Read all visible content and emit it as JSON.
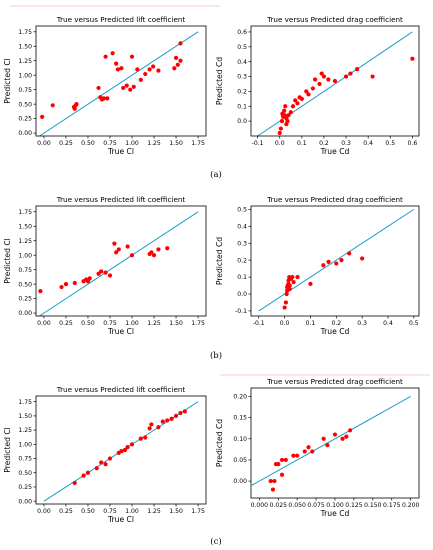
{
  "panel_labels": [
    "(a)",
    "(b)",
    "(c)"
  ],
  "colors": {
    "points": "#ff0000",
    "line": "#1f9ec9",
    "frame": "#000000",
    "divider": "#f2cfd6"
  },
  "chart_data": [
    {
      "type": "scatter",
      "title": "True versus Predicted lift coefficient",
      "xlabel": "True Cl",
      "ylabel": "Predicted Cl",
      "xlim": [
        -0.09,
        1.84
      ],
      "ylim": [
        -0.05,
        1.85
      ],
      "xticks": [
        "0.00",
        "0.25",
        "0.50",
        "0.75",
        "1.00",
        "1.25",
        "1.50",
        "1.75"
      ],
      "yticks": [
        "0.00",
        "0.25",
        "0.50",
        "0.75",
        "1.00",
        "1.25",
        "1.50",
        "1.75"
      ],
      "xtick_values": [
        0,
        0.25,
        0.5,
        0.75,
        1,
        1.25,
        1.5,
        1.75
      ],
      "ytick_values": [
        0,
        0.25,
        0.5,
        0.75,
        1,
        1.25,
        1.5,
        1.75
      ],
      "reference_line": [
        -0.05,
        1.75
      ],
      "x": [
        -0.02,
        0.1,
        0.35,
        0.37,
        0.34,
        0.36,
        0.62,
        0.64,
        0.66,
        0.7,
        0.72,
        0.68,
        0.78,
        0.82,
        0.84,
        0.88,
        0.9,
        0.94,
        0.98,
        1.0,
        1.02,
        1.06,
        1.1,
        1.15,
        1.2,
        1.24,
        1.3,
        1.48,
        1.5,
        1.52,
        1.55,
        1.55
      ],
      "y": [
        0.28,
        0.48,
        0.42,
        0.5,
        0.45,
        0.48,
        0.78,
        0.62,
        0.58,
        1.32,
        0.6,
        0.6,
        1.38,
        1.2,
        1.1,
        1.12,
        0.78,
        0.82,
        0.75,
        1.32,
        0.8,
        1.1,
        0.92,
        1.02,
        1.1,
        1.15,
        1.08,
        1.12,
        1.3,
        1.18,
        1.55,
        1.25
      ]
    },
    {
      "type": "scatter",
      "title": "True versus Predicted drag coefficient",
      "xlabel": "True Cd",
      "ylabel": "Predicted Cd",
      "xlim": [
        -0.13,
        0.63
      ],
      "ylim": [
        -0.1,
        0.64
      ],
      "xticks": [
        "-0.1",
        "0.0",
        "0.1",
        "0.2",
        "0.3",
        "0.4",
        "0.5",
        "0.6"
      ],
      "yticks": [
        "0.0",
        "0.1",
        "0.2",
        "0.3",
        "0.4",
        "0.5",
        "0.6"
      ],
      "xtick_values": [
        -0.1,
        0,
        0.1,
        0.2,
        0.3,
        0.4,
        0.5,
        0.6
      ],
      "ytick_values": [
        0,
        0.1,
        0.2,
        0.3,
        0.4,
        0.5,
        0.6
      ],
      "reference_line": [
        -0.1,
        0.6
      ],
      "x": [
        0.0,
        0.005,
        0.01,
        0.012,
        0.015,
        0.02,
        0.022,
        0.025,
        0.03,
        0.03,
        0.035,
        0.04,
        0.05,
        0.06,
        0.07,
        0.08,
        0.09,
        0.1,
        0.12,
        0.13,
        0.15,
        0.16,
        0.18,
        0.19,
        0.2,
        0.22,
        0.25,
        0.3,
        0.32,
        0.35,
        0.42,
        0.6
      ],
      "y": [
        -0.08,
        -0.05,
        0.0,
        0.05,
        0.03,
        0.07,
        0.04,
        0.1,
        0.02,
        -0.02,
        0.0,
        0.04,
        0.06,
        0.1,
        0.14,
        0.12,
        0.16,
        0.15,
        0.2,
        0.18,
        0.22,
        0.28,
        0.25,
        0.32,
        0.3,
        0.28,
        0.27,
        0.3,
        0.32,
        0.35,
        0.3,
        0.42
      ]
    },
    {
      "type": "scatter",
      "title": "True versus Predicted lift coefficient",
      "xlabel": "True Cl",
      "ylabel": "Predicted Cl",
      "xlim": [
        -0.09,
        1.84
      ],
      "ylim": [
        -0.05,
        1.85
      ],
      "xticks": [
        "0.00",
        "0.25",
        "0.50",
        "0.75",
        "1.00",
        "1.25",
        "1.50",
        "1.75"
      ],
      "yticks": [
        "0.00",
        "0.25",
        "0.50",
        "0.75",
        "1.00",
        "1.25",
        "1.50",
        "1.75"
      ],
      "xtick_values": [
        0,
        0.25,
        0.5,
        0.75,
        1,
        1.25,
        1.5,
        1.75
      ],
      "ytick_values": [
        0,
        0.25,
        0.5,
        0.75,
        1,
        1.25,
        1.5,
        1.75
      ],
      "reference_line": [
        -0.05,
        1.75
      ],
      "x": [
        -0.04,
        0.2,
        0.25,
        0.35,
        0.45,
        0.48,
        0.5,
        0.52,
        0.62,
        0.65,
        0.7,
        0.75,
        0.8,
        0.82,
        0.85,
        0.95,
        1.0,
        1.2,
        1.22,
        1.25,
        1.3,
        1.4
      ],
      "y": [
        0.38,
        0.45,
        0.5,
        0.52,
        0.55,
        0.58,
        0.55,
        0.6,
        0.68,
        0.72,
        0.7,
        0.65,
        1.2,
        1.05,
        1.1,
        1.15,
        1.0,
        1.02,
        1.05,
        1.0,
        1.1,
        1.12
      ]
    },
    {
      "type": "scatter",
      "title": "True versus Predicted drag coefficient",
      "xlabel": "True Cd",
      "ylabel": "Predicted Cd",
      "xlim": [
        -0.13,
        0.52
      ],
      "ylim": [
        -0.13,
        0.52
      ],
      "xticks": [
        "-0.1",
        "0.0",
        "0.1",
        "0.2",
        "0.3",
        "0.4",
        "0.5"
      ],
      "yticks": [
        "-0.1",
        "0.0",
        "0.1",
        "0.2",
        "0.3",
        "0.4",
        "0.5"
      ],
      "xtick_values": [
        -0.1,
        0,
        0.1,
        0.2,
        0.3,
        0.4,
        0.5
      ],
      "ytick_values": [
        -0.1,
        0,
        0.1,
        0.2,
        0.3,
        0.4,
        0.5
      ],
      "reference_line": [
        -0.1,
        0.5
      ],
      "x": [
        0.0,
        0.005,
        0.008,
        0.01,
        0.01,
        0.012,
        0.015,
        0.015,
        0.018,
        0.02,
        0.02,
        0.025,
        0.03,
        0.035,
        0.05,
        0.1,
        0.15,
        0.17,
        0.2,
        0.22,
        0.25,
        0.3
      ],
      "y": [
        -0.08,
        -0.05,
        0.0,
        0.02,
        0.04,
        0.05,
        0.06,
        0.08,
        0.1,
        0.05,
        0.03,
        0.09,
        0.1,
        0.07,
        0.1,
        0.06,
        0.17,
        0.19,
        0.18,
        0.2,
        0.24,
        0.21
      ]
    },
    {
      "type": "scatter",
      "title": "True versus Predicted lift coefficient",
      "xlabel": "True Cl",
      "ylabel": "Predicted Cl",
      "xlim": [
        -0.09,
        1.84
      ],
      "ylim": [
        -0.05,
        1.85
      ],
      "xticks": [
        "0.00",
        "0.25",
        "0.50",
        "0.75",
        "1.00",
        "1.25",
        "1.50",
        "1.75"
      ],
      "yticks": [
        "0.00",
        "0.25",
        "0.50",
        "0.75",
        "1.00",
        "1.25",
        "1.50",
        "1.75"
      ],
      "xtick_values": [
        0,
        0.25,
        0.5,
        0.75,
        1,
        1.25,
        1.5,
        1.75
      ],
      "ytick_values": [
        0,
        0.25,
        0.5,
        0.75,
        1,
        1.25,
        1.5,
        1.75
      ],
      "reference_line": [
        0.0,
        1.75
      ],
      "x": [
        0.35,
        0.45,
        0.5,
        0.6,
        0.65,
        0.7,
        0.75,
        0.85,
        0.88,
        0.92,
        0.95,
        1.0,
        1.1,
        1.15,
        1.2,
        1.22,
        1.3,
        1.35,
        1.4,
        1.45,
        1.5,
        1.55,
        1.6
      ],
      "y": [
        0.32,
        0.45,
        0.5,
        0.58,
        0.68,
        0.65,
        0.75,
        0.85,
        0.88,
        0.9,
        0.95,
        1.0,
        1.1,
        1.12,
        1.28,
        1.35,
        1.3,
        1.4,
        1.42,
        1.45,
        1.5,
        1.55,
        1.58
      ]
    },
    {
      "type": "scatter",
      "title": "True versus Predicted drag coefficient",
      "xlabel": "True Cd",
      "ylabel": "Predicted Cd",
      "xlim": [
        -0.011,
        0.211
      ],
      "ylim": [
        -0.04,
        0.22
      ],
      "xticks": [
        "0.000",
        "0.025",
        "0.050",
        "0.075",
        "0.100",
        "0.125",
        "0.150",
        "0.175",
        "0.200"
      ],
      "yticks": [
        "0.00",
        "0.05",
        "0.10",
        "0.15",
        "0.20"
      ],
      "xtick_values": [
        0,
        0.025,
        0.05,
        0.075,
        0.1,
        0.125,
        0.15,
        0.175,
        0.2
      ],
      "ytick_values": [
        0,
        0.05,
        0.1,
        0.15,
        0.2
      ],
      "reference_line": [
        -0.01,
        0.2
      ],
      "x": [
        0.015,
        0.018,
        0.02,
        0.022,
        0.025,
        0.03,
        0.03,
        0.035,
        0.045,
        0.05,
        0.06,
        0.065,
        0.07,
        0.085,
        0.09,
        0.1,
        0.11,
        0.115,
        0.12
      ],
      "y": [
        0.0,
        -0.02,
        0.0,
        0.04,
        0.04,
        0.05,
        0.015,
        0.05,
        0.06,
        0.06,
        0.07,
        0.08,
        0.07,
        0.1,
        0.085,
        0.11,
        0.1,
        0.105,
        0.12
      ]
    }
  ]
}
